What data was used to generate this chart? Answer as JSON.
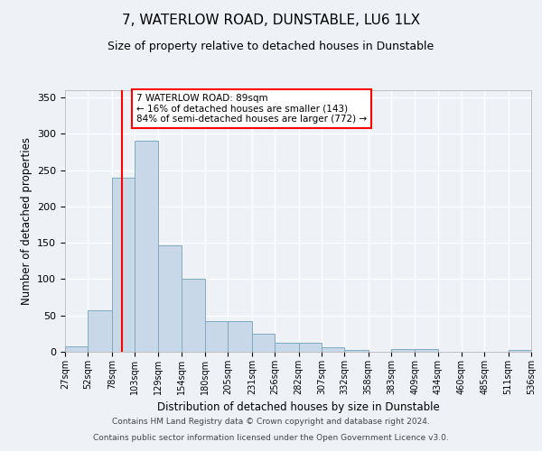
{
  "title": "7, WATERLOW ROAD, DUNSTABLE, LU6 1LX",
  "subtitle": "Size of property relative to detached houses in Dunstable",
  "xlabel": "Distribution of detached houses by size in Dunstable",
  "ylabel": "Number of detached properties",
  "bar_color": "#c8d8e8",
  "bar_edge_color": "#7faabf",
  "background_color": "#eef2f7",
  "grid_color": "#ffffff",
  "vline_x": 89,
  "vline_color": "red",
  "annotation_text": "7 WATERLOW ROAD: 89sqm\n← 16% of detached houses are smaller (143)\n84% of semi-detached houses are larger (772) →",
  "annotation_box_color": "white",
  "annotation_box_edge": "red",
  "bin_edges": [
    27,
    52,
    78,
    103,
    129,
    154,
    180,
    205,
    231,
    256,
    282,
    307,
    332,
    358,
    383,
    409,
    434,
    460,
    485,
    511,
    536
  ],
  "bar_heights": [
    8,
    57,
    240,
    290,
    146,
    100,
    42,
    42,
    25,
    13,
    12,
    6,
    3,
    0,
    4,
    4,
    0,
    0,
    0,
    3
  ],
  "ylim": [
    0,
    360
  ],
  "yticks": [
    0,
    50,
    100,
    150,
    200,
    250,
    300,
    350
  ],
  "footnote1": "Contains HM Land Registry data © Crown copyright and database right 2024.",
  "footnote2": "Contains public sector information licensed under the Open Government Licence v3.0.",
  "tick_labels": [
    "27sqm",
    "52sqm",
    "78sqm",
    "103sqm",
    "129sqm",
    "154sqm",
    "180sqm",
    "205sqm",
    "231sqm",
    "256sqm",
    "282sqm",
    "307sqm",
    "332sqm",
    "358sqm",
    "383sqm",
    "409sqm",
    "434sqm",
    "460sqm",
    "485sqm",
    "511sqm",
    "536sqm"
  ]
}
